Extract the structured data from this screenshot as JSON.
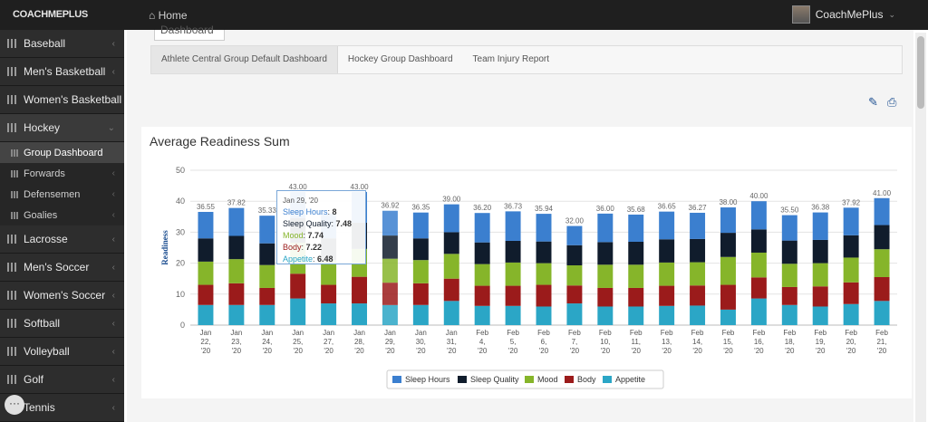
{
  "app": {
    "logo": "COACHMEPLUS",
    "home": "Home",
    "user": "CoachMePlus"
  },
  "sidebar": {
    "items": [
      {
        "label": "Baseball"
      },
      {
        "label": "Men's Basketball"
      },
      {
        "label": "Women's Basketball"
      },
      {
        "label": "Hockey"
      }
    ],
    "sub_items": [
      {
        "label": "Group Dashboard"
      },
      {
        "label": "Forwards"
      },
      {
        "label": "Defensemen"
      },
      {
        "label": "Goalies"
      }
    ],
    "items2": [
      {
        "label": "Lacrosse"
      },
      {
        "label": "Men's Soccer"
      },
      {
        "label": "Women's Soccer"
      },
      {
        "label": "Softball"
      },
      {
        "label": "Volleyball"
      },
      {
        "label": "Golf"
      },
      {
        "label": "Tennis"
      }
    ],
    "chat": "···"
  },
  "dashboard_tab": "Dashboard",
  "tabs": [
    {
      "label": "Athlete Central Group Default Dashboard"
    },
    {
      "label": "Hockey Group Dashboard"
    },
    {
      "label": "Team Injury Report"
    }
  ],
  "icons": {
    "edit": "pencil-icon",
    "print": "printer-icon",
    "accent": "#1d4f91"
  },
  "chart_title": "Average Readiness Sum",
  "tooltip": {
    "date": "Jan 29, '20",
    "rows": [
      {
        "label": "Sleep Hours",
        "value": "8"
      },
      {
        "label": "Sleep Quality",
        "value": "7.48"
      },
      {
        "label": "Mood",
        "value": "7.74"
      },
      {
        "label": "Body",
        "value": "7.22"
      },
      {
        "label": "Appetite",
        "value": "6.48"
      }
    ]
  },
  "chart_data": {
    "type": "bar",
    "stacked": true,
    "title": "Average Readiness Sum",
    "ylabel": "Readiness",
    "xlabel": "",
    "ylim": [
      0,
      50
    ],
    "yticks": [
      0,
      10,
      20,
      30,
      40,
      50
    ],
    "grid": true,
    "legend_position": "bottom",
    "categories": [
      "Jan 22, '20",
      "Jan 23, '20",
      "Jan 24, '20",
      "Jan 25, '20",
      "Jan 27, '20",
      "Jan 28, '20",
      "Jan 29, '20",
      "Jan 30, '20",
      "Jan 31, '20",
      "Feb 4, '20",
      "Feb 5, '20",
      "Feb 6, '20",
      "Feb 7, '20",
      "Feb 10, '20",
      "Feb 11, '20",
      "Feb 13, '20",
      "Feb 14, '20",
      "Feb 15, '20",
      "Feb 16, '20",
      "Feb 18, '20",
      "Feb 19, '20",
      "Feb 20, '20",
      "Feb 21, '20"
    ],
    "totals": [
      "36.55",
      "37.82",
      "35.33",
      "43.00",
      "",
      "43.00",
      "36.92",
      "36.35",
      "39.00",
      "36.20",
      "36.73",
      "35.94",
      "32.00",
      "36.00",
      "35.68",
      "36.65",
      "36.27",
      "38.00",
      "40.00",
      "35.50",
      "36.38",
      "37.92",
      "41.00"
    ],
    "series": [
      {
        "name": "Appetite",
        "color": "#2ba6c6",
        "values": [
          6.5,
          6.5,
          6.5,
          8.6,
          7.0,
          7.0,
          6.48,
          6.5,
          7.8,
          6.2,
          6.2,
          6.0,
          7.0,
          6.0,
          6.0,
          6.2,
          6.3,
          5.0,
          8.6,
          6.5,
          6.0,
          6.8,
          7.8
        ]
      },
      {
        "name": "Body",
        "color": "#9b1b1b",
        "values": [
          6.5,
          7.0,
          5.5,
          8.0,
          6.0,
          8.6,
          7.22,
          7.0,
          7.2,
          6.5,
          6.5,
          7.0,
          5.8,
          6.0,
          6.0,
          6.5,
          6.5,
          8.0,
          6.8,
          5.8,
          6.5,
          7.0,
          7.7
        ]
      },
      {
        "name": "Mood",
        "color": "#86b52a",
        "values": [
          7.5,
          7.8,
          7.4,
          10.0,
          8.0,
          9.0,
          7.74,
          7.5,
          8.0,
          7.0,
          7.5,
          7.0,
          6.5,
          7.5,
          7.5,
          7.5,
          7.5,
          9.0,
          8.0,
          7.5,
          7.5,
          8.0,
          9.0
        ]
      },
      {
        "name": "Sleep Quality",
        "color": "#101c2c",
        "values": [
          7.5,
          7.5,
          7.0,
          7.9,
          7.0,
          8.5,
          7.48,
          7.0,
          7.0,
          7.0,
          7.0,
          7.0,
          6.5,
          7.3,
          7.4,
          7.5,
          7.5,
          7.8,
          7.5,
          7.5,
          7.5,
          7.2,
          7.8
        ]
      },
      {
        "name": "Sleep Hours",
        "color": "#3b7fcf",
        "values": [
          8.55,
          9.02,
          8.93,
          8.5,
          8.0,
          9.9,
          8.0,
          8.35,
          9.0,
          9.5,
          9.53,
          8.94,
          6.2,
          9.2,
          8.78,
          8.95,
          8.47,
          8.2,
          9.1,
          8.2,
          8.88,
          8.92,
          8.7
        ]
      }
    ]
  }
}
